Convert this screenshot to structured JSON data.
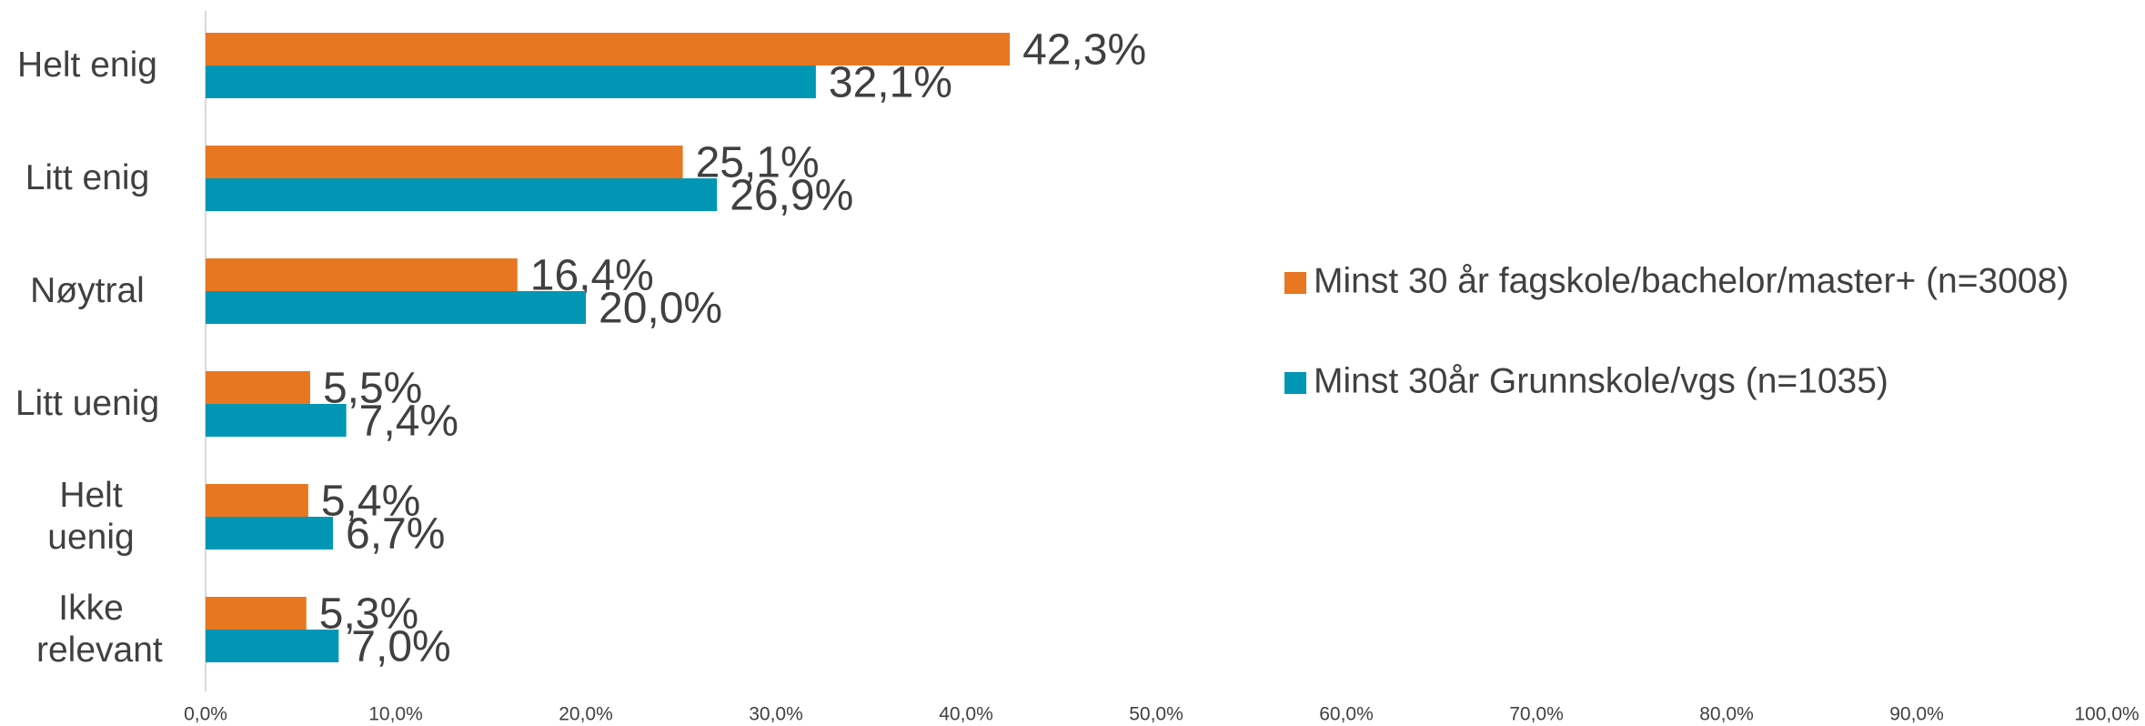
{
  "chart_data": {
    "type": "hbar",
    "categories": [
      "Helt enig",
      "Litt enig",
      "Nøytral",
      "Litt uenig",
      "Helt uenig",
      "Ikke relevant"
    ],
    "series": [
      {
        "name": "Minst 30 år fagskole/bachelor/master+ (n=3008)",
        "color": "#E87722",
        "values": [
          42.3,
          25.1,
          16.4,
          5.5,
          5.4,
          5.3
        ],
        "value_labels": [
          "42,3%",
          "25,1%",
          "16,4%",
          "5,5%",
          "5,4%",
          "5,3%"
        ]
      },
      {
        "name": "Minst 30år Grunnskole/vgs (n=1035)",
        "color": "#0096B4",
        "values": [
          32.1,
          26.9,
          20.0,
          7.4,
          6.7,
          7.0
        ],
        "value_labels": [
          "32,1%",
          "26,9%",
          "20,0%",
          "7,4%",
          "6,7%",
          "7,0%"
        ]
      }
    ],
    "xlim": [
      0,
      100
    ],
    "xticks": [
      {
        "value": 0,
        "label": "0,0%"
      },
      {
        "value": 10,
        "label": "10,0%"
      },
      {
        "value": 20,
        "label": "20,0%"
      },
      {
        "value": 30,
        "label": "30,0%"
      },
      {
        "value": 40,
        "label": "40,0%"
      },
      {
        "value": 50,
        "label": "50,0%"
      },
      {
        "value": 60,
        "label": "60,0%"
      },
      {
        "value": 70,
        "label": "70,0%"
      },
      {
        "value": 80,
        "label": "80,0%"
      },
      {
        "value": 90,
        "label": "90,0%"
      },
      {
        "value": 100,
        "label": "100,0%"
      }
    ],
    "legend": "right"
  }
}
